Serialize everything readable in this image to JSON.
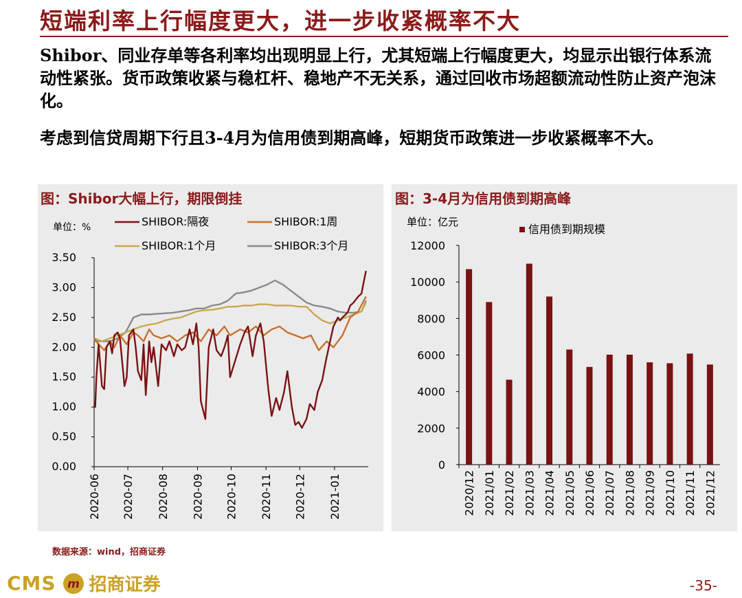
{
  "header": {
    "title": "短端利率上行幅度更大，进一步收紧概率不大",
    "para1": "Shibor、同业存单等各利率均出现明显上行，尤其短端上行幅度更大，均显示出银行体系流动性紧张。货币政策收紧与稳杠杆、稳地产不无关系，通过回收市场超额流动性防止资产泡沫化。",
    "para2": "考虑到信贷周期下行且3-4月为信用债到期高峰，短期货币政策进一步收紧概率不大。"
  },
  "colors": {
    "accent": "#8b1a1a",
    "panel_bg": "#ebebeb",
    "logo": "#c9a227"
  },
  "footer": {
    "source": "数据来源：wind，招商证券",
    "logo_text": "CMS",
    "logo_badge": "m",
    "logo_cn": "招商证券",
    "page": "-35-"
  },
  "chart_data": [
    {
      "type": "line",
      "title": "图：Shibor大幅上行，期限倒挂",
      "unit_label": "单位：%",
      "ylim": [
        0,
        3.5
      ],
      "yticks": [
        "0.00",
        "0.50",
        "1.00",
        "1.50",
        "2.00",
        "2.50",
        "3.00",
        "3.50"
      ],
      "xticks": [
        "2020-06",
        "2020-07",
        "2020-08",
        "2020-09",
        "2020-10",
        "2020-11",
        "2020-12",
        "2021-01"
      ],
      "legend_position": "top",
      "series": [
        {
          "name": "SHIBOR:隔夜",
          "color": "#7a1212",
          "x": [
            "2020-06-01",
            "2020-06-02",
            "2020-06-03",
            "2020-06-05",
            "2020-06-08",
            "2020-06-10",
            "2020-06-12",
            "2020-06-15",
            "2020-06-17",
            "2020-06-19",
            "2020-06-22",
            "2020-06-24",
            "2020-06-28",
            "2020-06-30",
            "2020-07-02",
            "2020-07-06",
            "2020-07-08",
            "2020-07-10",
            "2020-07-13",
            "2020-07-15",
            "2020-07-17",
            "2020-07-20",
            "2020-07-22",
            "2020-07-24",
            "2020-07-28",
            "2020-07-31",
            "2020-08-04",
            "2020-08-07",
            "2020-08-11",
            "2020-08-14",
            "2020-08-18",
            "2020-08-21",
            "2020-08-25",
            "2020-08-28",
            "2020-08-31",
            "2020-09-02",
            "2020-09-04",
            "2020-09-08",
            "2020-09-11",
            "2020-09-15",
            "2020-09-18",
            "2020-09-22",
            "2020-09-25",
            "2020-09-28",
            "2020-09-30",
            "2020-10-09",
            "2020-10-13",
            "2020-10-16",
            "2020-10-20",
            "2020-10-23",
            "2020-10-27",
            "2020-10-30",
            "2020-11-03",
            "2020-11-06",
            "2020-11-10",
            "2020-11-13",
            "2020-11-17",
            "2020-11-20",
            "2020-11-24",
            "2020-11-27",
            "2020-11-30",
            "2020-12-03",
            "2020-12-07",
            "2020-12-10",
            "2020-12-14",
            "2020-12-17",
            "2020-12-21",
            "2020-12-24",
            "2020-12-28",
            "2020-12-31",
            "2021-01-04",
            "2021-01-06",
            "2021-01-08",
            "2021-01-11",
            "2021-01-13",
            "2021-01-15",
            "2021-01-18",
            "2021-01-20",
            "2021-01-22",
            "2021-01-25",
            "2021-01-27",
            "2021-01-29"
          ],
          "y": [
            1.05,
            1.0,
            1.5,
            2.05,
            1.35,
            1.3,
            2.0,
            2.1,
            1.9,
            2.2,
            2.25,
            2.15,
            1.35,
            1.5,
            2.2,
            2.3,
            2.0,
            1.6,
            1.45,
            2.05,
            1.2,
            2.1,
            1.75,
            2.0,
            1.35,
            2.05,
            1.95,
            2.1,
            1.85,
            2.05,
            1.95,
            2.0,
            2.3,
            2.05,
            2.4,
            2.0,
            1.1,
            0.8,
            2.0,
            2.3,
            1.95,
            1.85,
            2.0,
            2.2,
            1.5,
            2.05,
            2.25,
            2.35,
            1.85,
            2.2,
            2.4,
            2.1,
            1.3,
            0.85,
            1.15,
            0.95,
            1.25,
            1.6,
            1.0,
            0.7,
            0.75,
            0.65,
            0.8,
            1.05,
            0.95,
            1.25,
            1.45,
            1.75,
            2.1,
            2.35,
            2.5,
            2.45,
            2.5,
            2.55,
            2.6,
            2.7,
            2.75,
            2.8,
            2.85,
            2.9,
            3.1,
            3.28
          ]
        },
        {
          "name": "SHIBOR:1周",
          "color": "#c9702d",
          "x": [
            "2020-06-01",
            "2020-06-05",
            "2020-06-10",
            "2020-06-15",
            "2020-06-19",
            "2020-06-24",
            "2020-06-30",
            "2020-07-06",
            "2020-07-10",
            "2020-07-15",
            "2020-07-20",
            "2020-07-24",
            "2020-07-31",
            "2020-08-07",
            "2020-08-14",
            "2020-08-21",
            "2020-08-28",
            "2020-09-04",
            "2020-09-11",
            "2020-09-18",
            "2020-09-25",
            "2020-09-30",
            "2020-10-09",
            "2020-10-16",
            "2020-10-23",
            "2020-10-30",
            "2020-11-06",
            "2020-11-13",
            "2020-11-20",
            "2020-11-27",
            "2020-12-04",
            "2020-12-11",
            "2020-12-18",
            "2020-12-25",
            "2020-12-31",
            "2021-01-08",
            "2021-01-15",
            "2021-01-22",
            "2021-01-29"
          ],
          "y": [
            2.15,
            2.05,
            1.95,
            2.1,
            2.0,
            2.2,
            2.05,
            2.25,
            2.2,
            2.1,
            2.3,
            2.2,
            2.15,
            2.2,
            2.1,
            2.2,
            2.25,
            2.1,
            2.3,
            2.2,
            2.35,
            2.2,
            2.3,
            2.25,
            2.35,
            2.2,
            2.3,
            2.35,
            2.25,
            2.2,
            2.15,
            2.2,
            1.95,
            2.1,
            2.0,
            2.2,
            2.5,
            2.6,
            2.85
          ]
        },
        {
          "name": "SHIBOR:1个月",
          "color": "#c9a84f",
          "x": [
            "2020-06-01",
            "2020-06-08",
            "2020-06-15",
            "2020-06-22",
            "2020-06-29",
            "2020-07-06",
            "2020-07-13",
            "2020-07-20",
            "2020-07-27",
            "2020-08-03",
            "2020-08-10",
            "2020-08-17",
            "2020-08-24",
            "2020-08-31",
            "2020-09-07",
            "2020-09-14",
            "2020-09-21",
            "2020-09-28",
            "2020-10-05",
            "2020-10-12",
            "2020-10-19",
            "2020-10-26",
            "2020-11-02",
            "2020-11-09",
            "2020-11-16",
            "2020-11-23",
            "2020-11-30",
            "2020-12-07",
            "2020-12-14",
            "2020-12-21",
            "2020-12-28",
            "2021-01-04",
            "2021-01-11",
            "2021-01-18",
            "2021-01-25",
            "2021-01-29"
          ],
          "y": [
            2.15,
            2.1,
            2.15,
            2.2,
            2.25,
            2.3,
            2.35,
            2.38,
            2.4,
            2.45,
            2.48,
            2.5,
            2.55,
            2.6,
            2.62,
            2.63,
            2.65,
            2.68,
            2.68,
            2.7,
            2.7,
            2.72,
            2.72,
            2.7,
            2.7,
            2.7,
            2.68,
            2.68,
            2.55,
            2.45,
            2.4,
            2.45,
            2.5,
            2.55,
            2.6,
            2.75
          ]
        },
        {
          "name": "SHIBOR:3个月",
          "color": "#8a8a8a",
          "x": [
            "2020-06-01",
            "2020-06-08",
            "2020-06-15",
            "2020-06-22",
            "2020-06-29",
            "2020-07-06",
            "2020-07-13",
            "2020-07-20",
            "2020-07-27",
            "2020-08-03",
            "2020-08-10",
            "2020-08-17",
            "2020-08-24",
            "2020-08-31",
            "2020-09-07",
            "2020-09-14",
            "2020-09-21",
            "2020-09-28",
            "2020-10-05",
            "2020-10-12",
            "2020-10-19",
            "2020-10-26",
            "2020-11-02",
            "2020-11-09",
            "2020-11-16",
            "2020-11-23",
            "2020-11-30",
            "2020-12-07",
            "2020-12-14",
            "2020-12-21",
            "2020-12-28",
            "2021-01-04",
            "2021-01-11",
            "2021-01-18",
            "2021-01-25",
            "2021-01-29"
          ],
          "y": [
            2.1,
            2.1,
            2.1,
            2.15,
            2.25,
            2.5,
            2.55,
            2.55,
            2.56,
            2.57,
            2.58,
            2.6,
            2.62,
            2.65,
            2.65,
            2.7,
            2.72,
            2.78,
            2.9,
            2.92,
            2.95,
            3.0,
            3.05,
            3.12,
            3.05,
            2.95,
            2.85,
            2.75,
            2.7,
            2.68,
            2.65,
            2.6,
            2.58,
            2.58,
            2.6,
            2.78
          ]
        }
      ]
    },
    {
      "type": "bar",
      "title": "图：3-4月为信用债到期高峰",
      "unit_label": "单位：亿元",
      "ylim": [
        0,
        12000
      ],
      "yticks": [
        "0",
        "2000",
        "4000",
        "6000",
        "8000",
        "10000",
        "12000"
      ],
      "legend_position": "top-right",
      "categories": [
        "2020/12",
        "2021/01",
        "2021/02",
        "2021/03",
        "2021/04",
        "2021/05",
        "2021/06",
        "2021/07",
        "2021/08",
        "2021/09",
        "2021/10",
        "2021/11",
        "2021/12"
      ],
      "series": [
        {
          "name": "信用债到期规模",
          "color": "#7a1212",
          "values": [
            10700,
            8900,
            4650,
            11000,
            9200,
            6300,
            5350,
            6020,
            6020,
            5600,
            5550,
            6080,
            5480
          ]
        }
      ]
    }
  ]
}
